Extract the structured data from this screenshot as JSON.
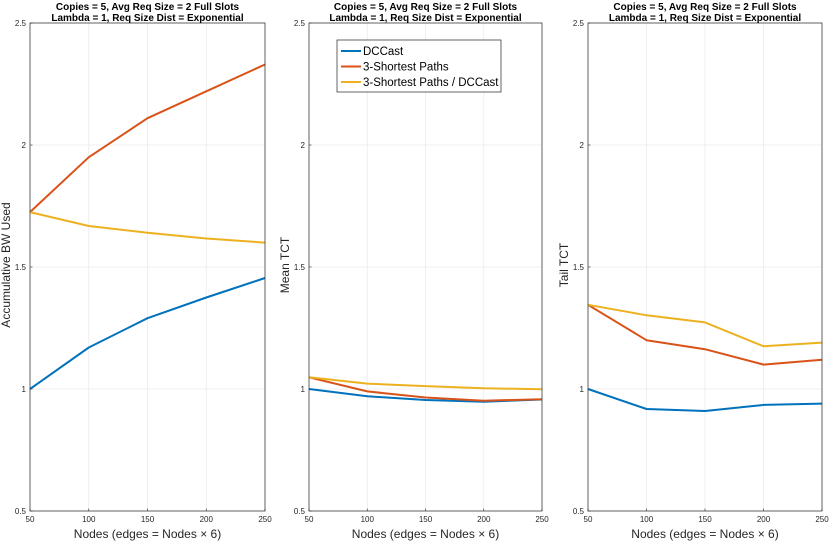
{
  "chart_data": [
    {
      "type": "line",
      "title_lines": [
        "Copies = 5, Avg Req Size = 2 Full Slots",
        "Lambda = 1, Req Size Dist = Exponential"
      ],
      "xlabel": "Nodes (edges = Nodes × 6)",
      "ylabel": "Accumulative BW Used",
      "x": [
        50,
        100,
        150,
        200,
        250
      ],
      "xlim": [
        50,
        250
      ],
      "ylim": [
        0.5,
        2.5
      ],
      "x_ticks": [
        "50",
        "100",
        "150",
        "200",
        "250"
      ],
      "y_ticks": [
        "0.5",
        "1",
        "1.5",
        "2",
        "2.5"
      ],
      "grid": true,
      "series": [
        {
          "name": "DCCast",
          "color": "#0072BD",
          "values": [
            1.0,
            1.17,
            1.29,
            1.375,
            1.455
          ]
        },
        {
          "name": "3-Shortest Paths",
          "color": "#D95319",
          "values": [
            1.725,
            1.95,
            2.11,
            2.22,
            2.33
          ]
        },
        {
          "name": "3-Shortest Paths / DCCast",
          "color": "#EDB120",
          "values": [
            1.725,
            1.668,
            1.64,
            1.617,
            1.6
          ]
        }
      ]
    },
    {
      "type": "line",
      "title_lines": [
        "Copies = 5, Avg Req Size = 2 Full Slots",
        "Lambda = 1, Req Size Dist = Exponential"
      ],
      "xlabel": "Nodes (edges = Nodes × 6)",
      "ylabel": "Mean TCT",
      "x": [
        50,
        100,
        150,
        200,
        250
      ],
      "xlim": [
        50,
        250
      ],
      "ylim": [
        0.5,
        2.5
      ],
      "x_ticks": [
        "50",
        "100",
        "150",
        "200",
        "250"
      ],
      "y_ticks": [
        "0.5",
        "1",
        "1.5",
        "2",
        "2.5"
      ],
      "grid": true,
      "legend": {
        "placement": "top-left",
        "entries": [
          "DCCast",
          "3-Shortest Paths",
          "3-Shortest Paths / DCCast"
        ]
      },
      "series": [
        {
          "name": "DCCast",
          "color": "#0072BD",
          "values": [
            1.0,
            0.97,
            0.955,
            0.948,
            0.957
          ]
        },
        {
          "name": "3-Shortest Paths",
          "color": "#D95319",
          "values": [
            1.048,
            0.99,
            0.965,
            0.952,
            0.958
          ]
        },
        {
          "name": "3-Shortest Paths / DCCast",
          "color": "#EDB120",
          "values": [
            1.048,
            1.022,
            1.012,
            1.003,
            0.999
          ]
        }
      ]
    },
    {
      "type": "line",
      "title_lines": [
        "Copies = 5, Avg Req Size = 2 Full Slots",
        "Lambda = 1, Req Size Dist = Exponential"
      ],
      "xlabel": "Nodes (edges = Nodes × 6)",
      "ylabel": "Tail TCT",
      "x": [
        50,
        100,
        150,
        200,
        250
      ],
      "xlim": [
        50,
        250
      ],
      "ylim": [
        0.5,
        2.5
      ],
      "x_ticks": [
        "50",
        "100",
        "150",
        "200",
        "250"
      ],
      "y_ticks": [
        "0.5",
        "1",
        "1.5",
        "2",
        "2.5"
      ],
      "grid": true,
      "series": [
        {
          "name": "DCCast",
          "color": "#0072BD",
          "values": [
            1.0,
            0.918,
            0.91,
            0.935,
            0.94
          ]
        },
        {
          "name": "3-Shortest Paths",
          "color": "#D95319",
          "values": [
            1.345,
            1.2,
            1.163,
            1.1,
            1.12
          ]
        },
        {
          "name": "3-Shortest Paths / DCCast",
          "color": "#EDB120",
          "values": [
            1.345,
            1.302,
            1.273,
            1.175,
            1.19
          ]
        }
      ]
    }
  ]
}
